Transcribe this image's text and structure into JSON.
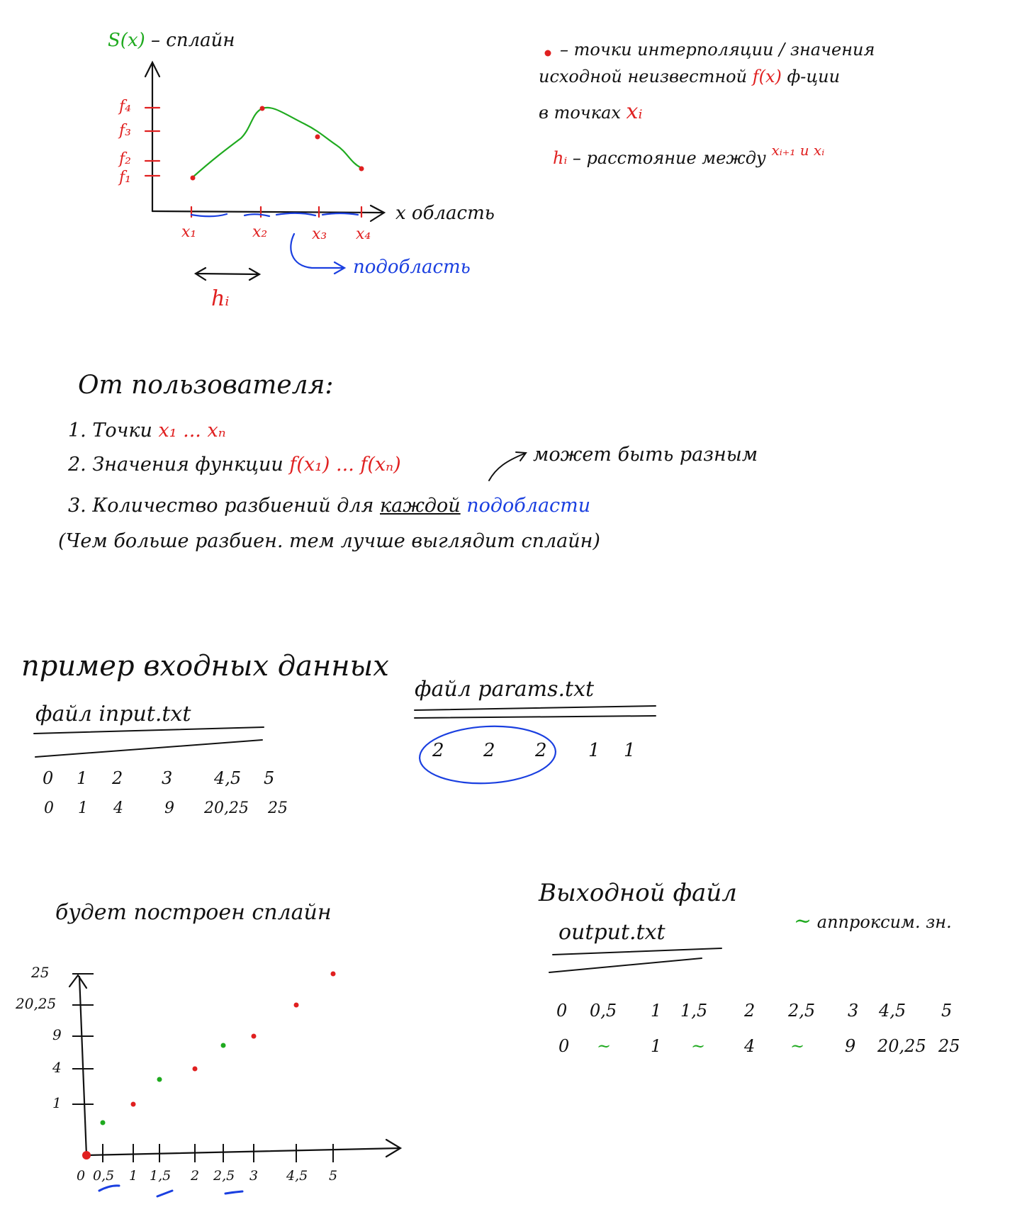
{
  "top_diagram": {
    "spline_label": "S(x)",
    "spline_suffix": " – сплайн",
    "y_ticks": [
      "f₄",
      "f₃",
      "f₂",
      "f₁"
    ],
    "x_ticks": [
      "x₁",
      "x₂",
      "x₃",
      "x₄"
    ],
    "x_axis_label": "x область",
    "h_label": "hᵢ",
    "subregion_label": "подобласть"
  },
  "legend": {
    "dot_text_1": "– точки интерполяции / значения",
    "dot_text_2a": "исходной неизвестной ",
    "dot_text_2_fx": "f(x)",
    "dot_text_2b": " ф-ции",
    "dot_text_3a": "в точках ",
    "dot_text_3_xi": "xᵢ",
    "h_text_h": "hᵢ",
    "h_text_mid": " – расстояние между ",
    "h_text_x": "xᵢ₊₁ и xᵢ"
  },
  "user_input": {
    "title": "От пользователя:",
    "item1_prefix": "1. Точки ",
    "item1_red": "x₁ ... xₙ",
    "item2_prefix": "2. Значения функции ",
    "item2_red": "f(x₁) ... f(xₙ)",
    "item2_note": "может быть разным",
    "item3_prefix": "3. Количество разбиений для ",
    "item3_under": "каждой",
    "item3_blue": "подобласти",
    "item4": "(Чем больше разбиен. тем лучше выглядит сплайн)"
  },
  "example": {
    "title": "пример входных данных",
    "input_file_label": "файл input.txt",
    "input_row1": [
      "0",
      "1",
      "2",
      "3",
      "4,5",
      "5"
    ],
    "input_row2": [
      "0",
      "1",
      "4",
      "9",
      "20,25",
      "25"
    ],
    "params_file_label": "файл params.txt",
    "params_values": [
      "2",
      "2",
      "2",
      "1",
      "1"
    ]
  },
  "spline_plot": {
    "title": "будет построен сплайн",
    "y_tick_labels": [
      "25",
      "20,25",
      "9",
      "4",
      "1"
    ],
    "x_tick_labels": [
      "0",
      "0,5",
      "1",
      "1,5",
      "2",
      "2,5",
      "3",
      "4,5",
      "5"
    ]
  },
  "output": {
    "title": "Выходной файл",
    "file_label": "output.txt",
    "approx_legend": "аппроксим. зн.",
    "row1": [
      "0",
      "0,5",
      "1",
      "1,5",
      "2",
      "2,5",
      "3",
      "4,5",
      "5"
    ],
    "row2": [
      "0",
      "~",
      "1",
      "~",
      "4",
      "~",
      "9",
      "20,25",
      "25"
    ]
  },
  "colors": {
    "red": "#e02020",
    "green": "#1faa1f",
    "blue": "#1a3fe0",
    "ink": "#111111"
  },
  "chart_data": {
    "type": "scatter",
    "title": "",
    "xlabel": "",
    "ylabel": "",
    "series": [
      {
        "name": "",
        "color": "red",
        "x": [
          0,
          1,
          2,
          3,
          4.5,
          5
        ],
        "y": [
          0,
          1,
          4,
          9,
          20.25,
          25
        ]
      },
      {
        "name": "",
        "color": "green",
        "x": [
          0.5,
          1.5,
          2.5
        ],
        "y": [
          null,
          null,
          null
        ]
      }
    ]
  }
}
